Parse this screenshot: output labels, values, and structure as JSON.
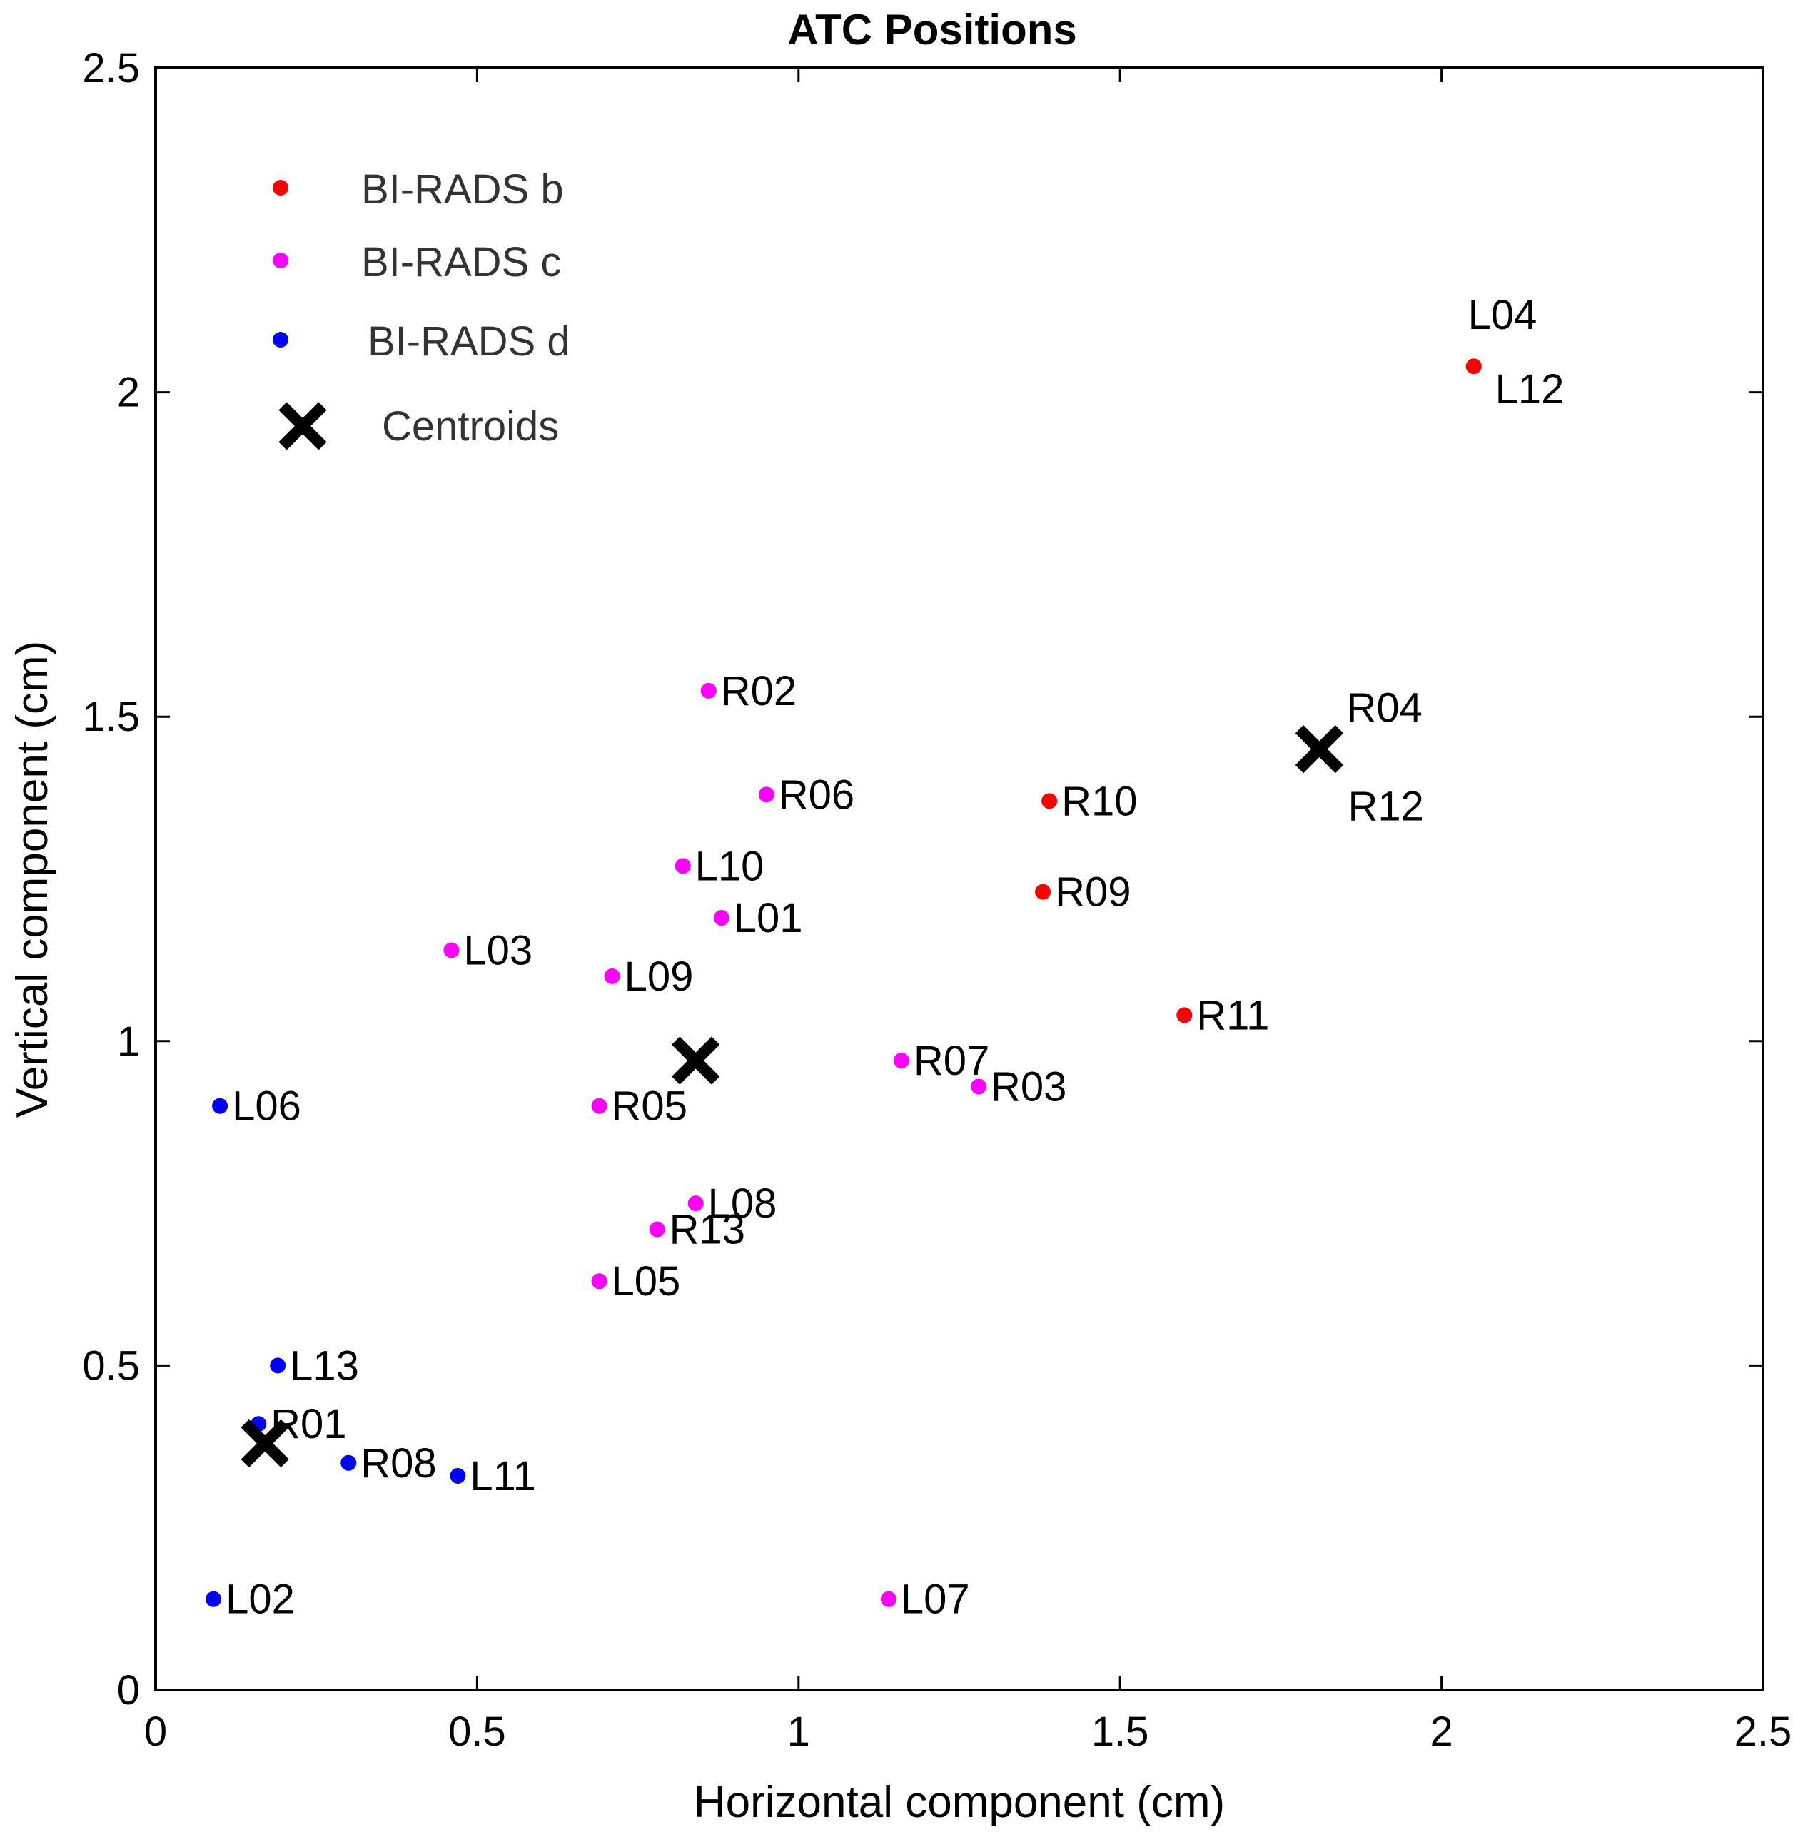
{
  "chart_data": {
    "type": "scatter",
    "title": "ATC Positions",
    "xlabel": "Horizontal component (cm)",
    "ylabel": "Vertical component (cm)",
    "xlim": [
      0,
      2.5
    ],
    "ylim": [
      0,
      2.5
    ],
    "xticks": [
      0,
      0.5,
      1,
      1.5,
      2,
      2.5
    ],
    "yticks": [
      0,
      0.5,
      1,
      1.5,
      2,
      2.5
    ],
    "xtick_labels": [
      "0",
      "0.5",
      "1",
      "1.5",
      "2",
      "2.5"
    ],
    "ytick_labels": [
      "0",
      "0.5",
      "1",
      "1.5",
      "2",
      "2.5"
    ],
    "grid": false,
    "legend_position": "top-left",
    "legend": [
      {
        "label": "BI-RADS  b",
        "marker": "dot",
        "color": "#ff0000"
      },
      {
        "label": "BI-RADS  c",
        "marker": "dot",
        "color": "#ff00ff"
      },
      {
        "label": "BI-RADS  d",
        "marker": "dot",
        "color": "#0000ff"
      },
      {
        "label": "Centroids",
        "marker": "x",
        "color": "#000000"
      }
    ],
    "series": [
      {
        "name": "BI-RADS  b",
        "color": "#ff0000",
        "points": [
          {
            "x": 2.05,
            "y": 2.04,
            "label": "L04",
            "label2": "L12"
          },
          {
            "x": 1.39,
            "y": 1.37,
            "label": "R10"
          },
          {
            "x": 1.38,
            "y": 1.23,
            "label": "R09"
          },
          {
            "x": 1.6,
            "y": 1.04,
            "label": "R11"
          }
        ]
      },
      {
        "name": "BI-RADS  c",
        "color": "#ff00ff",
        "points": [
          {
            "x": 0.86,
            "y": 1.54,
            "label": "R02"
          },
          {
            "x": 0.95,
            "y": 1.38,
            "label": "R06"
          },
          {
            "x": 0.82,
            "y": 1.27,
            "label": "L10"
          },
          {
            "x": 0.88,
            "y": 1.19,
            "label": "L01"
          },
          {
            "x": 0.46,
            "y": 1.14,
            "label": "L03"
          },
          {
            "x": 0.71,
            "y": 1.1,
            "label": "L09"
          },
          {
            "x": 0.69,
            "y": 0.9,
            "label": "R05"
          },
          {
            "x": 1.16,
            "y": 0.97,
            "label": "R07"
          },
          {
            "x": 1.28,
            "y": 0.93,
            "label": "R03"
          },
          {
            "x": 0.84,
            "y": 0.75,
            "label": "L08"
          },
          {
            "x": 0.78,
            "y": 0.71,
            "label": "R13"
          },
          {
            "x": 0.69,
            "y": 0.63,
            "label": "L05"
          },
          {
            "x": 1.14,
            "y": 0.14,
            "label": "L07"
          }
        ]
      },
      {
        "name": "BI-RADS  d",
        "color": "#0000ff",
        "points": [
          {
            "x": 0.1,
            "y": 0.9,
            "label": "L06"
          },
          {
            "x": 0.19,
            "y": 0.5,
            "label": "L13"
          },
          {
            "x": 0.16,
            "y": 0.41,
            "label": "R01"
          },
          {
            "x": 0.3,
            "y": 0.35,
            "label": "R08"
          },
          {
            "x": 0.47,
            "y": 0.33,
            "label": "L11"
          },
          {
            "x": 0.09,
            "y": 0.14,
            "label": "L02"
          }
        ]
      }
    ],
    "centroids": [
      {
        "x": 1.81,
        "y": 1.45,
        "label": "R04",
        "label2": "R12"
      },
      {
        "x": 0.84,
        "y": 0.97
      },
      {
        "x": 0.17,
        "y": 0.38
      }
    ]
  }
}
